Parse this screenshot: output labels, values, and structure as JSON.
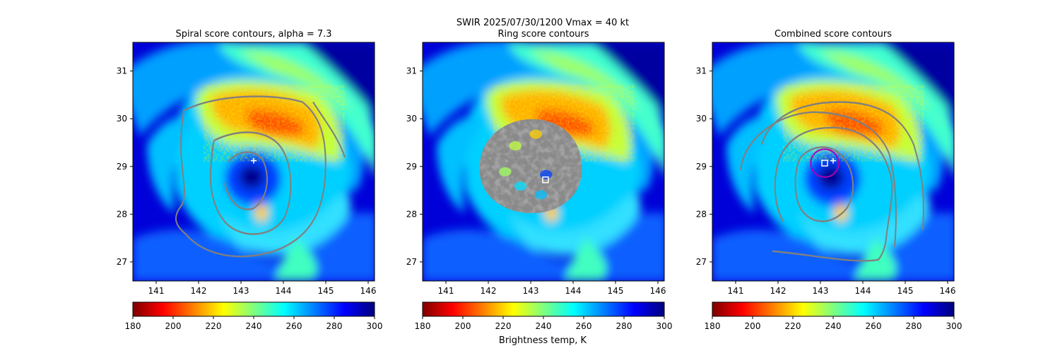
{
  "figure": {
    "suptitle": "SWIR  2025/07/30/1200    Vmax = 40 kt",
    "colorbar_label": "Brightness temp, K"
  },
  "colormap": {
    "name": "jet_r",
    "stops": [
      "#7f0000",
      "#ff0000",
      "#ff7f00",
      "#ffff00",
      "#7fff7f",
      "#00ffff",
      "#007fff",
      "#0000ff",
      "#00007f"
    ]
  },
  "chart_data": [
    {
      "type": "heatmap",
      "title": "Spiral score contours, alpha =  7.3",
      "xlim": [
        140.45,
        146.15
      ],
      "ylim": [
        26.6,
        31.6
      ],
      "xticks": [
        "141",
        "142",
        "143",
        "144",
        "145",
        "146"
      ],
      "yticks": [
        "27",
        "28",
        "29",
        "30",
        "31"
      ],
      "colorbar": {
        "range": [
          180,
          300
        ],
        "ticks": [
          "180",
          "200",
          "220",
          "240",
          "260",
          "280",
          "300"
        ]
      },
      "center_marker": {
        "type": "plus",
        "lon": 143.3,
        "lat": 29.12
      },
      "contour_color": "#808080"
    },
    {
      "type": "heatmap",
      "title": "Ring score contours",
      "xlim": [
        140.45,
        146.15
      ],
      "ylim": [
        26.6,
        31.6
      ],
      "xticks": [
        "141",
        "142",
        "143",
        "144",
        "145",
        "146"
      ],
      "yticks": [
        "27",
        "28",
        "29",
        "30",
        "31"
      ],
      "colorbar": {
        "range": [
          180,
          300
        ],
        "ticks": [
          "180",
          "200",
          "220",
          "240",
          "260",
          "280",
          "300"
        ]
      },
      "center_marker": {
        "type": "square",
        "lon": 143.35,
        "lat": 28.72
      },
      "ring_region": {
        "lon": 143.0,
        "lat": 28.95,
        "radius_deg": 1.15
      },
      "contour_color": "#808080"
    },
    {
      "type": "heatmap",
      "title": "Combined score contours",
      "xlim": [
        140.45,
        146.15
      ],
      "ylim": [
        26.6,
        31.6
      ],
      "xticks": [
        "141",
        "142",
        "143",
        "144",
        "145",
        "146"
      ],
      "yticks": [
        "27",
        "28",
        "29",
        "30",
        "31"
      ],
      "colorbar": {
        "range": [
          180,
          300
        ],
        "ticks": [
          "180",
          "200",
          "220",
          "240",
          "260",
          "280",
          "300"
        ]
      },
      "center_marker": {
        "type": "plus",
        "lon": 143.3,
        "lat": 29.12
      },
      "square_marker": {
        "lon": 143.1,
        "lat": 29.07
      },
      "circle_marker": {
        "lon": 143.1,
        "lat": 29.07,
        "radius_deg": 0.33,
        "color": "#b000b0"
      },
      "contour_color": "#808080"
    }
  ]
}
